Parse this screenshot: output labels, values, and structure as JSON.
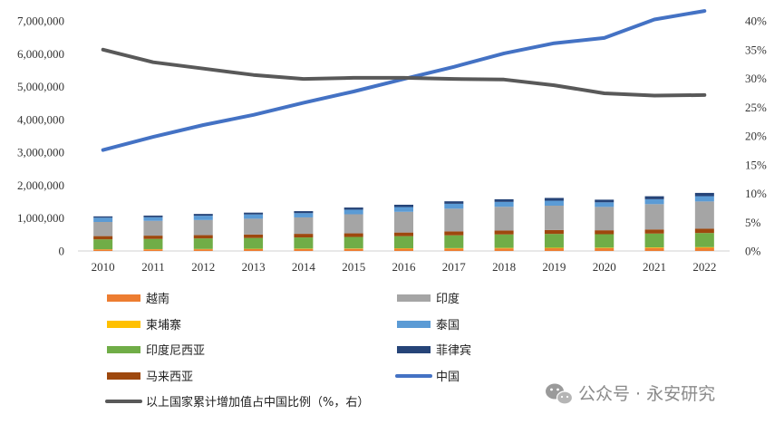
{
  "watermark": {
    "text": "公众号 · 永安研究",
    "icon": "wechat-icon"
  },
  "chart_data": {
    "type": "bar",
    "stacked": true,
    "categories": [
      "2010",
      "2011",
      "2012",
      "2013",
      "2014",
      "2015",
      "2016",
      "2017",
      "2018",
      "2019",
      "2020",
      "2021",
      "2022"
    ],
    "y_left": {
      "min": 0,
      "max": 7000000,
      "step": 1000000,
      "ticks": [
        "0",
        "1,000,000",
        "2,000,000",
        "3,000,000",
        "4,000,000",
        "5,000,000",
        "6,000,000",
        "7,000,000"
      ]
    },
    "y_right": {
      "min": 0,
      "max": 40,
      "step": 5,
      "ticks": [
        "0%",
        "5%",
        "10%",
        "15%",
        "20%",
        "25%",
        "30%",
        "35%",
        "40%"
      ]
    },
    "bar_series": [
      {
        "name": "越南",
        "color": "#ED7D31",
        "values": [
          45000,
          48000,
          52000,
          56000,
          60000,
          64000,
          68000,
          72000,
          78000,
          82000,
          85000,
          92000,
          97000
        ]
      },
      {
        "name": "柬埔寨",
        "color": "#FFC000",
        "values": [
          7000,
          8000,
          9000,
          10000,
          11000,
          12000,
          13000,
          14000,
          15000,
          16000,
          15000,
          17000,
          19000
        ]
      },
      {
        "name": "印度尼西亚",
        "color": "#70AD47",
        "values": [
          300000,
          310000,
          320000,
          330000,
          340000,
          350000,
          370000,
          390000,
          410000,
          420000,
          410000,
          420000,
          430000
        ]
      },
      {
        "name": "马来西亚",
        "color": "#9E480E",
        "values": [
          100000,
          100000,
          100000,
          105000,
          110000,
          110000,
          110000,
          120000,
          120000,
          120000,
          120000,
          125000,
          130000
        ]
      },
      {
        "name": "印度",
        "color": "#A5A5A5",
        "values": [
          430000,
          450000,
          460000,
          480000,
          500000,
          580000,
          630000,
          690000,
          720000,
          740000,
          710000,
          770000,
          830000
        ]
      },
      {
        "name": "泰国",
        "color": "#5B9BD5",
        "values": [
          130000,
          110000,
          130000,
          130000,
          130000,
          140000,
          145000,
          150000,
          150000,
          150000,
          140000,
          150000,
          160000
        ]
      },
      {
        "name": "菲律宾",
        "color": "#264478",
        "values": [
          40000,
          50000,
          55000,
          55000,
          60000,
          65000,
          70000,
          75000,
          80000,
          85000,
          80000,
          90000,
          100000
        ]
      }
    ],
    "line_series": [
      {
        "name": "中国",
        "color": "#4472C4",
        "axis": "left",
        "values": [
          3070000,
          3470000,
          3830000,
          4140000,
          4510000,
          4850000,
          5230000,
          5600000,
          6010000,
          6320000,
          6480000,
          7040000,
          7300000
        ]
      },
      {
        "name": "以上国家累计增加值占中国比例（%，右）",
        "color": "#595959",
        "axis": "right",
        "values": [
          35.0,
          32.8,
          31.7,
          30.6,
          29.9,
          30.1,
          30.1,
          29.9,
          29.8,
          28.8,
          27.4,
          27.0,
          27.1
        ]
      }
    ],
    "legend": {
      "position": "bottom",
      "left_column": [
        "越南",
        "柬埔寨",
        "印度尼西亚",
        "马来西亚",
        "以上国家累计增加值占中国比例（%，右）"
      ],
      "right_column": [
        "印度",
        "泰国",
        "菲律宾",
        "中国"
      ]
    },
    "title": "",
    "xlabel": "",
    "ylabel": ""
  }
}
